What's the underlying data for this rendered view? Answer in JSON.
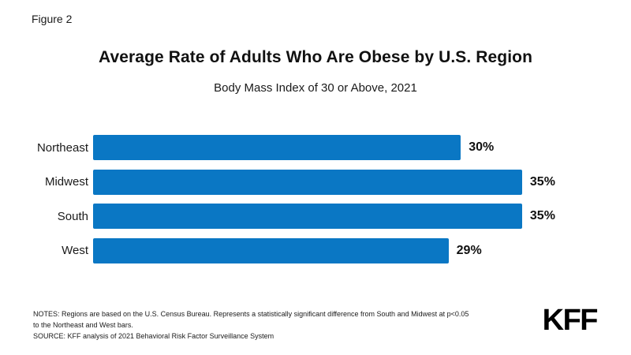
{
  "figure_label": "Figure 2",
  "header": {
    "title": "Average Rate of Adults Who Are Obese by U.S. Region",
    "subtitle": "Body Mass Index of 30 or Above, 2021"
  },
  "chart_data": {
    "type": "bar",
    "orientation": "horizontal",
    "title": "Average Rate of Adults Who Are Obese by U.S. Region",
    "subtitle": "Body Mass Index of 30 or Above, 2021",
    "categories": [
      "Northeast",
      "Midwest",
      "South",
      "West"
    ],
    "values": [
      30,
      35,
      35,
      29
    ],
    "value_labels": [
      "30%",
      "35%",
      "35%",
      "29%"
    ],
    "unit": "%",
    "xlim": [
      0,
      35
    ],
    "grid": false,
    "legend": false,
    "bar_color": "#0A77C4"
  },
  "notes": {
    "line1": "NOTES:  Regions are based on the U.S. Census Bureau. Represents a statistically significant difference from South and Midwest at p<0.05",
    "line2": "to the Northeast and West bars.",
    "line3": "SOURCE: KFF analysis of 2021 Behavioral Risk Factor Surveillance System"
  },
  "branding": {
    "logo_text": "KFF"
  },
  "colors": {
    "bar": "#0A77C4",
    "text": "#111111",
    "background": "#FFFFFF"
  }
}
